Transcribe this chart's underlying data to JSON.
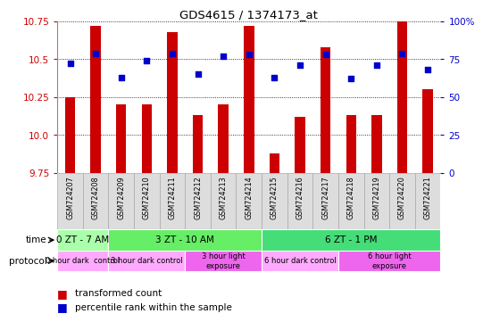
{
  "title": "GDS4615 / 1374173_at",
  "samples": [
    "GSM724207",
    "GSM724208",
    "GSM724209",
    "GSM724210",
    "GSM724211",
    "GSM724212",
    "GSM724213",
    "GSM724214",
    "GSM724215",
    "GSM724216",
    "GSM724217",
    "GSM724218",
    "GSM724219",
    "GSM724220",
    "GSM724221"
  ],
  "transformed_count": [
    10.25,
    10.72,
    10.2,
    10.2,
    10.68,
    10.13,
    10.2,
    10.72,
    9.88,
    10.12,
    10.58,
    10.13,
    10.13,
    10.75,
    10.3
  ],
  "percentile_rank": [
    72,
    79,
    63,
    74,
    79,
    65,
    77,
    78,
    63,
    71,
    78,
    62,
    71,
    79,
    68
  ],
  "ylim_left": [
    9.75,
    10.75
  ],
  "ylim_right": [
    0,
    100
  ],
  "yticks_left": [
    9.75,
    10.0,
    10.25,
    10.5,
    10.75
  ],
  "yticks_right": [
    0,
    25,
    50,
    75,
    100
  ],
  "bar_color": "#cc0000",
  "dot_color": "#0000cc",
  "time_groups": [
    {
      "label": "0 ZT - 7 AM",
      "start": 0,
      "end": 2,
      "color": "#aaffaa"
    },
    {
      "label": "3 ZT - 10 AM",
      "start": 2,
      "end": 8,
      "color": "#66ee66"
    },
    {
      "label": "6 ZT - 1 PM",
      "start": 8,
      "end": 15,
      "color": "#44dd77"
    }
  ],
  "protocol_groups": [
    {
      "label": "0 hour dark  control",
      "start": 0,
      "end": 2,
      "color": "#ffaaff"
    },
    {
      "label": "3 hour dark control",
      "start": 2,
      "end": 5,
      "color": "#ffaaff"
    },
    {
      "label": "3 hour light\nexposure",
      "start": 5,
      "end": 8,
      "color": "#ee66ee"
    },
    {
      "label": "6 hour dark control",
      "start": 8,
      "end": 11,
      "color": "#ffaaff"
    },
    {
      "label": "6 hour light\nexposure",
      "start": 11,
      "end": 15,
      "color": "#ee66ee"
    }
  ],
  "background_color": "#ffffff",
  "grid_color": "#000000",
  "tick_label_color_left": "#cc0000",
  "tick_label_color_right": "#0000cc",
  "sample_bg_color": "#dddddd",
  "sample_border_color": "#aaaaaa"
}
